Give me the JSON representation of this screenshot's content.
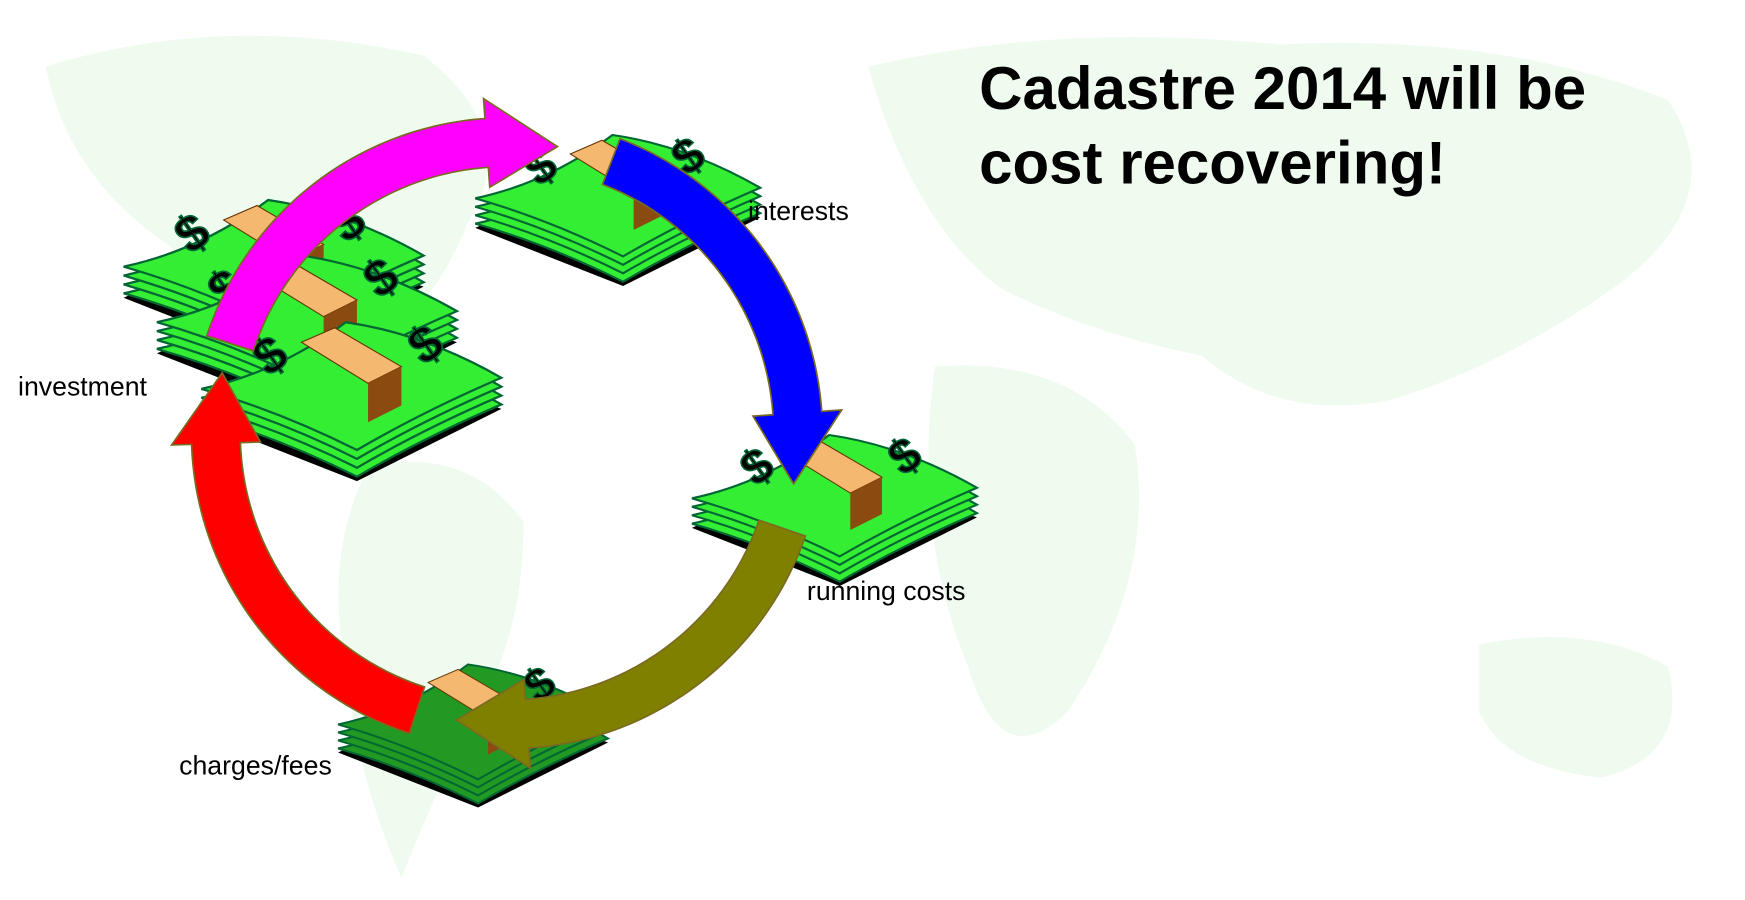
{
  "title": {
    "lines": [
      "Cadastre 2014 will be",
      "cost recovering!"
    ]
  },
  "nodes": [
    {
      "label": "investment"
    },
    {
      "label": "interests"
    },
    {
      "label": "running costs"
    },
    {
      "label": "charges/fees"
    }
  ]
}
